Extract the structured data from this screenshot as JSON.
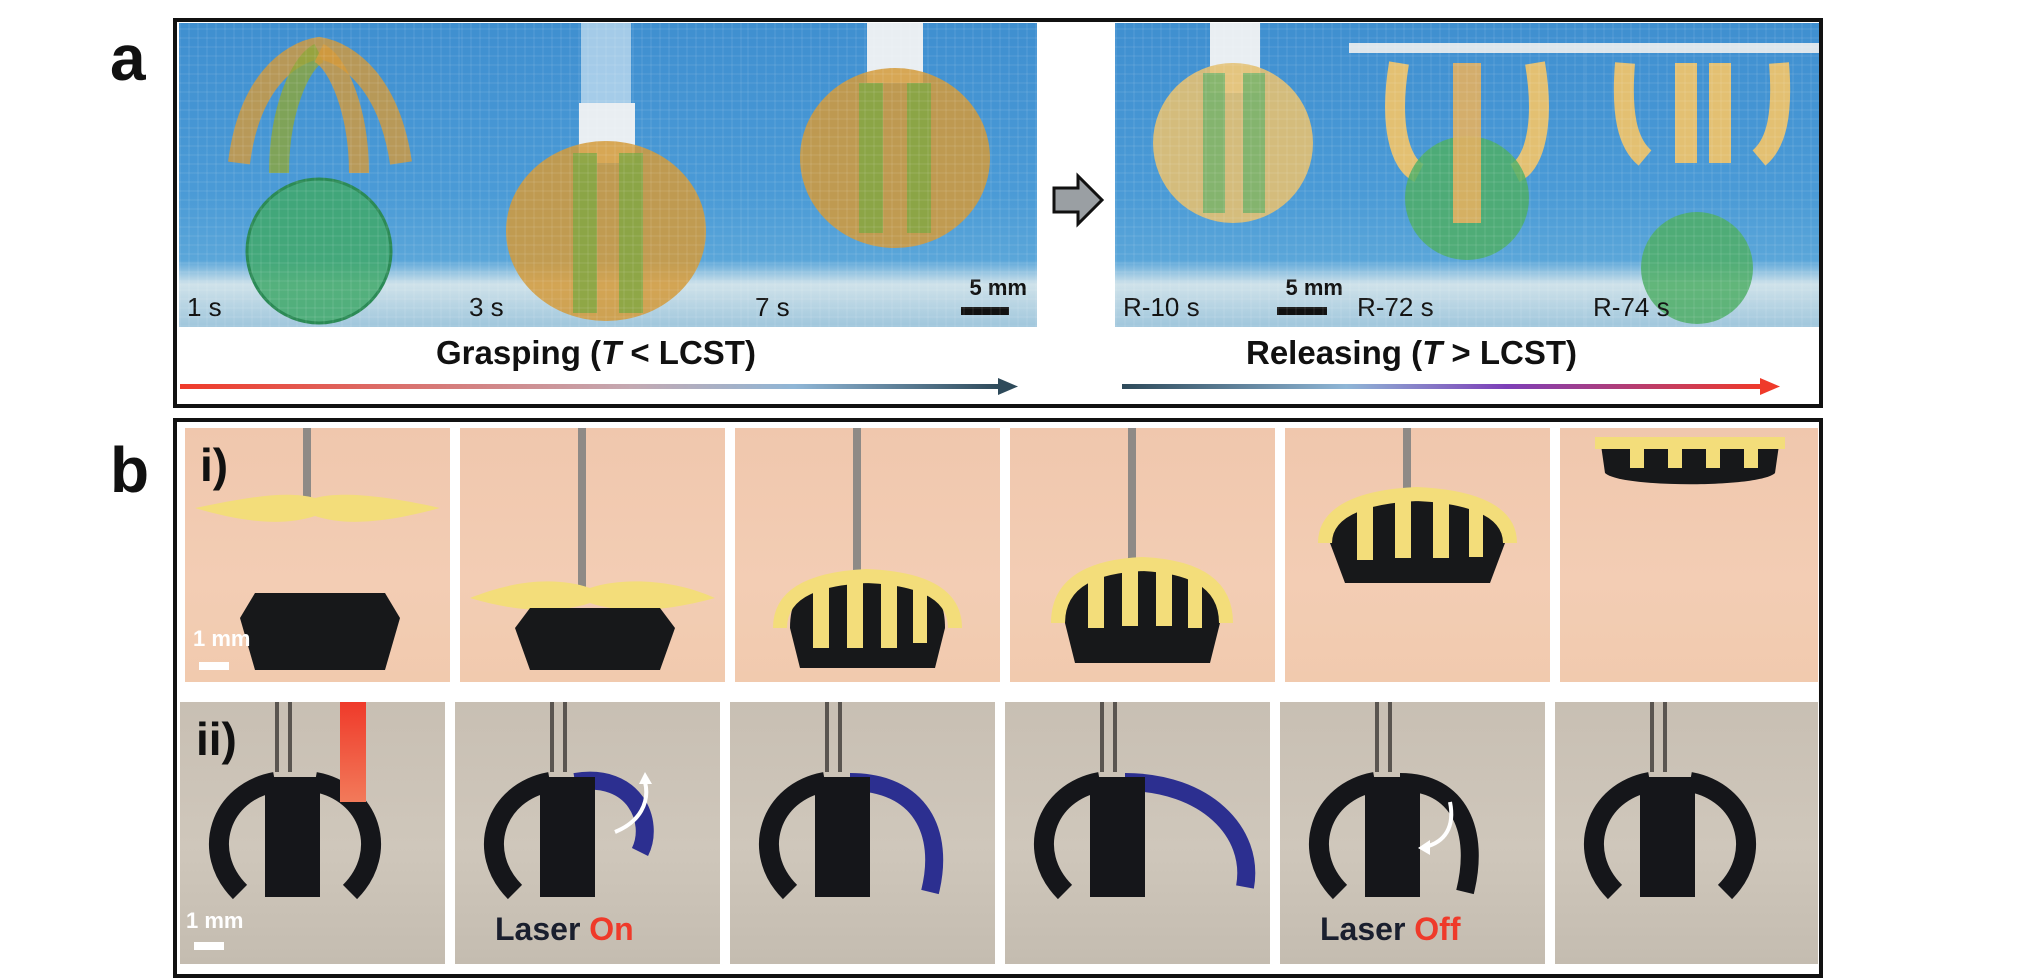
{
  "panel_a": {
    "letter": "a",
    "grasping_frames": [
      {
        "time": "1 s"
      },
      {
        "time": "3 s"
      },
      {
        "time": "7 s"
      }
    ],
    "releasing_frames": [
      {
        "time": "R-10 s"
      },
      {
        "time": "R-72 s"
      },
      {
        "time": "R-74 s"
      }
    ],
    "scale_grasp": "5 mm",
    "scale_release": "5 mm",
    "grasping_caption": {
      "prefix": "Grasping (",
      "var": "T",
      "suffix": " < LCST)"
    },
    "releasing_caption": {
      "prefix": "Releasing (",
      "var": "T",
      "suffix": " > LCST)"
    },
    "colors": {
      "arrow_start": "#ef3a2a",
      "arrow_mid": "#8fb6d6",
      "arrow_end": "#2e4a5a",
      "release_mid": "#7d3fb8"
    }
  },
  "panel_b": {
    "letter": "b",
    "row_i_label": "i)",
    "row_ii_label": "ii)",
    "scale_i": "1 mm",
    "scale_ii": "1 mm",
    "laser_on": {
      "word": "Laser",
      "state": "On"
    },
    "laser_off": {
      "word": "Laser",
      "state": "Off"
    }
  }
}
